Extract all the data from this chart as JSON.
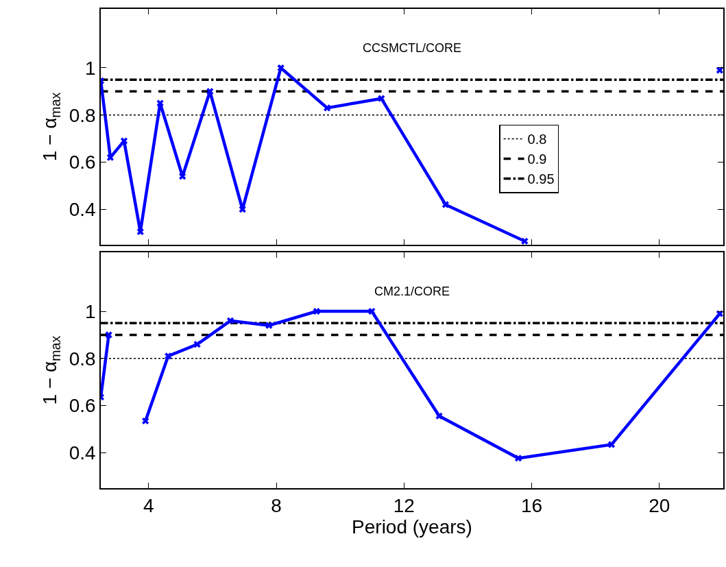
{
  "chart_data": [
    {
      "type": "line",
      "title": "CCSMCTL/CORE",
      "ylabel": "1 − α$_{max}$",
      "series": [
        {
          "color": "#0000ff",
          "x": [
            2.5,
            2.8,
            3.23,
            3.74,
            4.36,
            5.06,
            5.92,
            6.94,
            8.14,
            9.59,
            11.29,
            13.3,
            15.78,
            17.8,
            21.89
          ],
          "values": [
            0.945,
            0.62,
            0.69,
            0.305,
            0.85,
            0.54,
            0.9,
            0.4,
            1.0,
            0.83,
            0.87,
            0.42,
            0.265,
            null,
            0.99
          ]
        }
      ],
      "marker": "cross",
      "line_style": "solid",
      "xlim": [
        2.5,
        22
      ],
      "xticks": [
        4,
        8,
        12,
        16,
        20
      ],
      "ylim": [
        0.25,
        1.25
      ],
      "yticks": [
        0.4,
        0.6,
        0.8,
        1
      ],
      "ref_lines": [
        {
          "axis": "y",
          "value": 0.8,
          "label": "0.8",
          "line_style": "dotted",
          "color": "#000000"
        },
        {
          "axis": "y",
          "value": 0.9,
          "label": "0.9",
          "line_style": "dashed",
          "color": "#000000"
        },
        {
          "axis": "y",
          "value": 0.95,
          "label": "0.95",
          "line_style": "dashdot",
          "color": "#000000"
        }
      ],
      "legend": "right",
      "grid": false,
      "tick_labels": "y"
    },
    {
      "type": "line",
      "title": "CM2.1/CORE",
      "ylabel": "1 − α$_{max}$",
      "xlabel": "Period (years)",
      "series": [
        {
          "color": "#0000ff",
          "x": [
            2.5,
            2.75,
            3.26,
            3.9,
            4.61,
            5.52,
            6.56,
            7.77,
            9.26,
            10.99,
            13.1,
            15.58,
            18.5,
            21.89
          ],
          "values": [
            0.636,
            0.9,
            null,
            0.535,
            0.81,
            0.86,
            0.96,
            0.94,
            1.0,
            1.0,
            0.556,
            0.377,
            0.435,
            0.99
          ]
        }
      ],
      "marker": "cross",
      "line_style": "solid",
      "xlim": [
        2.5,
        22
      ],
      "xticks": [
        4,
        8,
        12,
        16,
        20
      ],
      "ylim": [
        0.25,
        1.25
      ],
      "yticks": [
        0.4,
        0.6,
        0.8,
        1
      ],
      "ref_lines": [
        {
          "axis": "y",
          "value": 0.8,
          "line_style": "dotted",
          "color": "#000000"
        },
        {
          "axis": "y",
          "value": 0.9,
          "line_style": "dashed",
          "color": "#000000"
        },
        {
          "axis": "y",
          "value": 0.95,
          "line_style": "dashdot",
          "color": "#000000"
        }
      ],
      "legend": false,
      "grid": false
    }
  ]
}
